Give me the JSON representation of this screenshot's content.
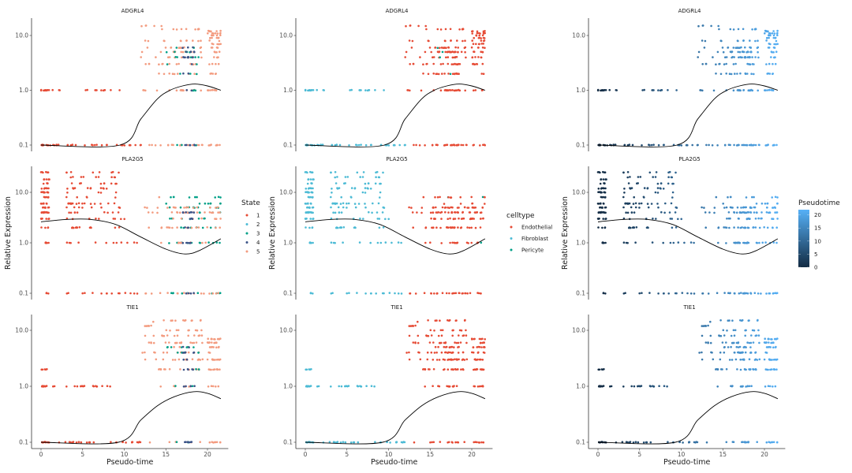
{
  "chart_data": {
    "type": "scatter",
    "layout": "3x3 facet grid (rows = genes, columns = color scheme)",
    "xlabel": "Pseudo-time",
    "ylabel": "Relative Expression",
    "xlim": [
      0,
      22
    ],
    "xticks": [
      0,
      5,
      10,
      15,
      20
    ],
    "y_scale": "log10",
    "ylim": [
      0.1,
      20
    ],
    "yticks": [
      0.1,
      1.0,
      10.0
    ],
    "ytick_labels": [
      "0.1",
      "1.0",
      "10.0"
    ],
    "grid": false,
    "genes": [
      {
        "name": "ADGRL4",
        "trend": [
          [
            0,
            0.1
          ],
          [
            9.5,
            0.1
          ],
          [
            12,
            0.3
          ],
          [
            14,
            0.7
          ],
          [
            15.5,
            1.0
          ],
          [
            17,
            1.2
          ],
          [
            18.5,
            1.3
          ],
          [
            20,
            1.2
          ],
          [
            21.6,
            1.0
          ]
        ],
        "point_groups": [
          {
            "x_range": [
              0,
              1
            ],
            "y": [
              0.1,
              1.0
            ],
            "state": 1,
            "celltype": "Fibroblast",
            "n": 25
          },
          {
            "x_range": [
              1,
              9.5
            ],
            "y": [
              0.1,
              1.0
            ],
            "state": 1,
            "celltype": "Fibroblast",
            "n": 35
          },
          {
            "x_range": [
              9.5,
              12
            ],
            "y": [
              0.1
            ],
            "state": 1,
            "celltype": "Fibroblast",
            "n": 10
          },
          {
            "x_range": [
              12,
              14.5
            ],
            "y": [
              0.1,
              1,
              2,
              3,
              4,
              5,
              6,
              8,
              15
            ],
            "state": 5,
            "celltype": "Endothelial",
            "n": 25
          },
          {
            "x_range": [
              14.5,
              19.5
            ],
            "y": [
              0.1,
              1,
              2,
              3,
              4,
              5,
              6,
              8,
              13
            ],
            "state": 5,
            "celltype": "Endothelial",
            "n": 90
          },
          {
            "x_range": [
              15,
              19
            ],
            "y": [
              0.1,
              1,
              2,
              3,
              4,
              5,
              6
            ],
            "state": 3,
            "celltype": "Endothelial",
            "n": 25
          },
          {
            "x_range": [
              17,
              18.5
            ],
            "y": [
              0.1,
              1,
              2,
              3,
              4,
              5,
              6
            ],
            "state": 4,
            "celltype": "Endothelial",
            "n": 30
          },
          {
            "x_range": [
              20,
              21.6
            ],
            "y": [
              0.1,
              1,
              2,
              3,
              4,
              5,
              6,
              7,
              8,
              9,
              10,
              11,
              12
            ],
            "state": 5,
            "celltype": "Endothelial",
            "n": 70
          }
        ]
      },
      {
        "name": "PLA2G5",
        "trend": [
          [
            0,
            2.6
          ],
          [
            3,
            2.9
          ],
          [
            6,
            2.9
          ],
          [
            9,
            2.3
          ],
          [
            12,
            1.3
          ],
          [
            15,
            0.75
          ],
          [
            17.3,
            0.6
          ],
          [
            19,
            0.7
          ],
          [
            21.6,
            1.2
          ]
        ],
        "point_groups": [
          {
            "x_range": [
              0,
              1
            ],
            "y": [
              0.1,
              1,
              2,
              3,
              4,
              5,
              6,
              8,
              10,
              12,
              15,
              18,
              25
            ],
            "state": 1,
            "celltype": "Fibroblast",
            "n": 80
          },
          {
            "x_range": [
              3,
              9.5
            ],
            "y": [
              0.1,
              1,
              2,
              3,
              4,
              5,
              6,
              8,
              10,
              12,
              15,
              20,
              25
            ],
            "state": 1,
            "celltype": "Fibroblast",
            "n": 120
          },
          {
            "x_range": [
              9.5,
              12
            ],
            "y": [
              0.1,
              1,
              3
            ],
            "state": 1,
            "celltype": "Fibroblast",
            "n": 10
          },
          {
            "x_range": [
              12,
              14.5
            ],
            "y": [
              0.1,
              1,
              2,
              4,
              5,
              8
            ],
            "state": 5,
            "celltype": "Endothelial",
            "n": 15
          },
          {
            "x_range": [
              15,
              21.6
            ],
            "y": [
              0.1,
              1,
              2,
              3,
              4,
              5,
              6,
              8
            ],
            "state": 3,
            "celltype": "Endothelial",
            "n": 70
          },
          {
            "x_range": [
              15,
              21.6
            ],
            "y": [
              0.1,
              1,
              2,
              3,
              4,
              5
            ],
            "state": 5,
            "celltype": "Endothelial",
            "n": 70
          },
          {
            "x_range": [
              17,
              18.5
            ],
            "y": [
              0.1,
              1,
              2,
              3,
              4
            ],
            "state": 4,
            "celltype": "Endothelial",
            "n": 25
          }
        ]
      },
      {
        "name": "TIE1",
        "trend": [
          [
            0,
            0.1
          ],
          [
            9.3,
            0.1
          ],
          [
            12,
            0.25
          ],
          [
            14,
            0.45
          ],
          [
            16,
            0.65
          ],
          [
            18.3,
            0.8
          ],
          [
            20,
            0.75
          ],
          [
            21.6,
            0.6
          ]
        ],
        "point_groups": [
          {
            "x_range": [
              0,
              1
            ],
            "y": [
              0.1,
              1.0,
              2.0
            ],
            "state": 1,
            "celltype": "Fibroblast",
            "n": 25
          },
          {
            "x_range": [
              1,
              9.5
            ],
            "y": [
              0.1,
              1.0
            ],
            "state": 1,
            "celltype": "Fibroblast",
            "n": 35
          },
          {
            "x_range": [
              9.5,
              12
            ],
            "y": [
              0.1
            ],
            "state": 1,
            "celltype": "Fibroblast",
            "n": 10
          },
          {
            "x_range": [
              12,
              14.5
            ],
            "y": [
              0.1,
              1,
              2,
              3,
              4,
              5,
              6,
              8,
              12,
              14
            ],
            "state": 5,
            "celltype": "Endothelial",
            "n": 25
          },
          {
            "x_range": [
              14.5,
              19.5
            ],
            "y": [
              0.1,
              1,
              2,
              3,
              4,
              5,
              6,
              8,
              10,
              15
            ],
            "state": 5,
            "celltype": "Endothelial",
            "n": 90
          },
          {
            "x_range": [
              15,
              19
            ],
            "y": [
              0.1,
              1,
              2,
              3,
              4,
              5
            ],
            "state": 3,
            "celltype": "Endothelial",
            "n": 20
          },
          {
            "x_range": [
              17,
              18.5
            ],
            "y": [
              0.1,
              1,
              2,
              3,
              4,
              5
            ],
            "state": 4,
            "celltype": "Endothelial",
            "n": 25
          },
          {
            "x_range": [
              20,
              21.6
            ],
            "y": [
              0.1,
              1,
              2,
              3,
              4,
              5,
              6,
              7
            ],
            "state": 5,
            "celltype": "Endothelial",
            "n": 60
          }
        ]
      }
    ],
    "columns": [
      {
        "color_by": "State",
        "legend_title": "State",
        "legend": [
          {
            "label": "1",
            "color": "#E64B35"
          },
          {
            "label": "2",
            "color": "#4DBBD5"
          },
          {
            "label": "3",
            "color": "#00A087"
          },
          {
            "label": "4",
            "color": "#3C5488"
          },
          {
            "label": "5",
            "color": "#F39B7F"
          }
        ]
      },
      {
        "color_by": "celltype",
        "legend_title": "celltype",
        "legend": [
          {
            "label": "Endothelial",
            "color": "#E64B35"
          },
          {
            "label": "Fibroblast",
            "color": "#4DBBD5"
          },
          {
            "label": "Pericyte",
            "color": "#00A087"
          }
        ]
      },
      {
        "color_by": "Pseudotime",
        "legend_title": "Pseudotime",
        "gradient": {
          "low": "#132B43",
          "high": "#56B1F7",
          "min": 0,
          "max": 22
        },
        "legend_ticks": [
          0,
          5,
          10,
          15,
          20
        ]
      }
    ]
  }
}
